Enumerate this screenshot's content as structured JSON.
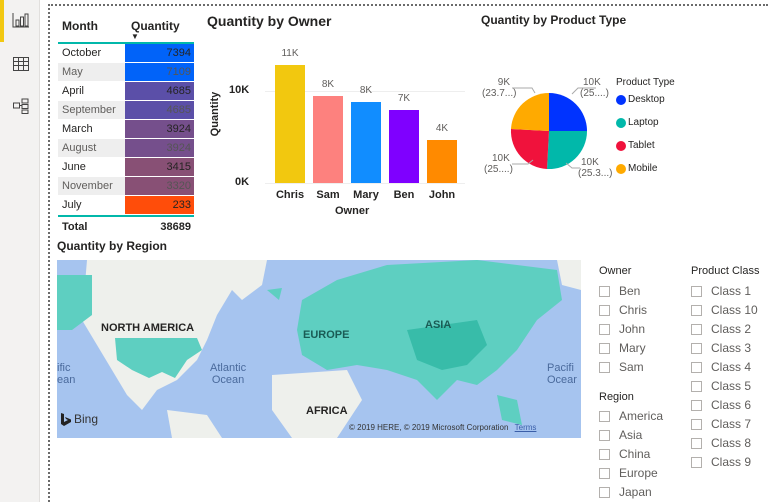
{
  "rail": {
    "items": [
      {
        "name": "report-view-icon",
        "active": true
      },
      {
        "name": "data-view-icon",
        "active": false
      },
      {
        "name": "model-view-icon",
        "active": false
      }
    ]
  },
  "month_table": {
    "headers": {
      "month": "Month",
      "quantity": "Quantity"
    },
    "rows": [
      {
        "month": "October",
        "quantity": "7394",
        "color": "#0163f9"
      },
      {
        "month": "May",
        "quantity": "7109",
        "color": "#0163f9"
      },
      {
        "month": "April",
        "quantity": "4685",
        "color": "#5b4fa8"
      },
      {
        "month": "September",
        "quantity": "4685",
        "color": "#5b4fa8"
      },
      {
        "month": "March",
        "quantity": "3924",
        "color": "#754f8c"
      },
      {
        "month": "August",
        "quantity": "3924",
        "color": "#754f8c"
      },
      {
        "month": "June",
        "quantity": "3415",
        "color": "#885075"
      },
      {
        "month": "November",
        "quantity": "3320",
        "color": "#885075"
      },
      {
        "month": "July",
        "quantity": "233",
        "color": "#ff4d0a"
      }
    ],
    "total_label": "Total",
    "total_value": "38689"
  },
  "owner_chart": {
    "title": "Quantity by Owner",
    "ylabel": "Quantity",
    "xlabel": "Owner",
    "yticks": [
      "10K",
      "0K"
    ]
  },
  "product_chart": {
    "title": "Quantity by Product Type",
    "legend_title": "Product Type",
    "labels": [
      {
        "value": "9K",
        "pct": "(23.7...)"
      },
      {
        "value": "10K",
        "pct": "(25....)"
      },
      {
        "value": "10K",
        "pct": "(25....)"
      },
      {
        "value": "10K",
        "pct": "(25.3...)"
      }
    ]
  },
  "map": {
    "title": "Quantity by Region",
    "labels": {
      "north_america": "NORTH AMERICA",
      "europe": "EUROPE",
      "asia": "ASIA",
      "africa": "AFRICA",
      "atlantic1": "Atlantic",
      "atlantic2": "Ocean",
      "pacific_l1": "ific",
      "pacific_l2": "ean",
      "pacific_r1": "Pacifi",
      "pacific_r2": "Ocear"
    },
    "bing": "Bing",
    "copyright": "© 2019 HERE, © 2019 Microsoft Corporation",
    "terms": "Terms"
  },
  "slicers": {
    "owner": {
      "title": "Owner",
      "items": [
        "Ben",
        "Chris",
        "John",
        "Mary",
        "Sam"
      ]
    },
    "region": {
      "title": "Region",
      "items": [
        "America",
        "Asia",
        "China",
        "Europe",
        "Japan"
      ]
    },
    "product_class": {
      "title": "Product Class",
      "items": [
        "Class 1",
        "Class 10",
        "Class 2",
        "Class 3",
        "Class 4",
        "Class 5",
        "Class 6",
        "Class 7",
        "Class 8",
        "Class 9"
      ]
    }
  },
  "chart_data": [
    {
      "type": "bar",
      "title": "Quantity by Owner",
      "xlabel": "Owner",
      "ylabel": "Quantity",
      "categories": [
        "Chris",
        "Sam",
        "Mary",
        "Ben",
        "John"
      ],
      "values": [
        11300,
        8400,
        7800,
        7000,
        4100
      ],
      "data_labels": [
        "11K",
        "8K",
        "8K",
        "7K",
        "4K"
      ],
      "colors": [
        "#f2c80f",
        "#fd817e",
        "#118dff",
        "#7f00ff",
        "#ff8a00"
      ],
      "yticks": [
        "0K",
        "10K"
      ],
      "ylim": [
        0,
        12500
      ]
    },
    {
      "type": "pie",
      "title": "Quantity by Product Type",
      "legend_title": "Product Type",
      "categories": [
        "Desktop",
        "Laptop",
        "Tablet",
        "Mobile"
      ],
      "values": [
        25.0,
        25.3,
        25.0,
        23.7
      ],
      "data_labels": [
        "10K (25....)",
        "10K (25.3...)",
        "10K (25....)",
        "9K (23.7...)"
      ],
      "colors": [
        "#0033ff",
        "#01b8aa",
        "#f0123c",
        "#ffaa00"
      ],
      "legend_position": "right"
    }
  ]
}
